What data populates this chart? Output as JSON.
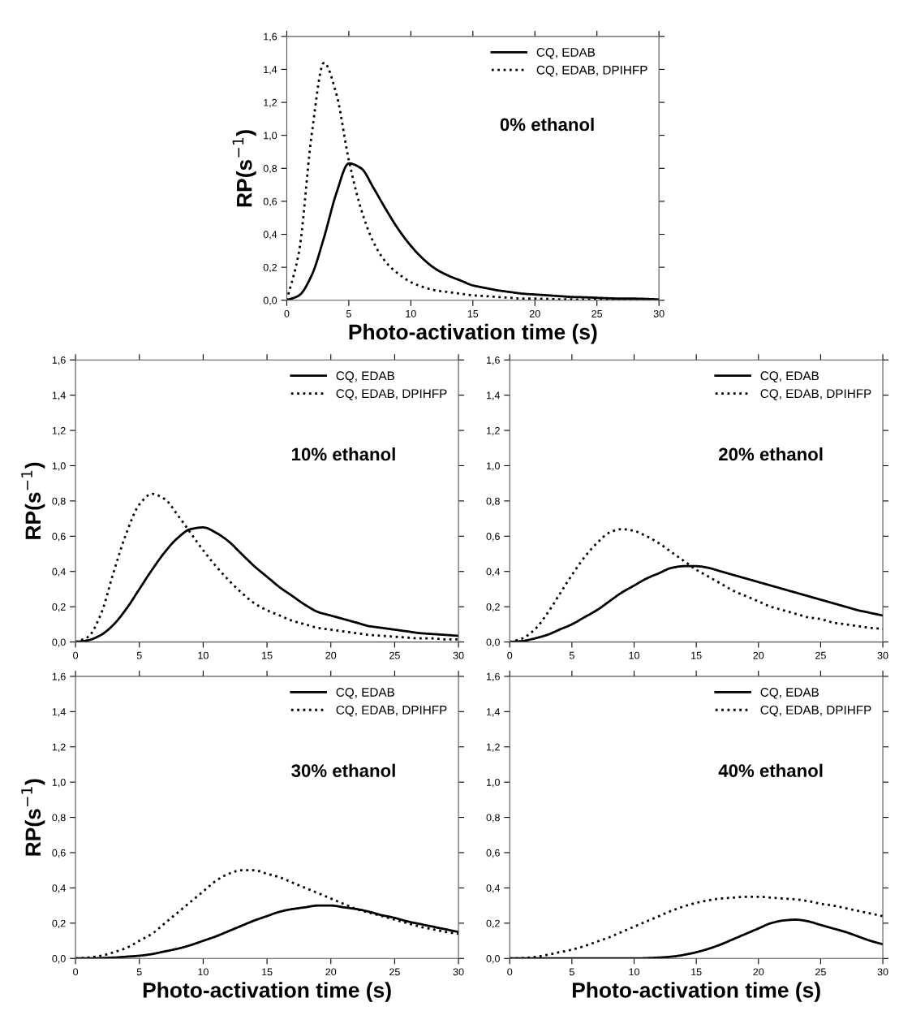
{
  "chart_data": [
    {
      "type": "line",
      "xlabel": "Photo-activation time (s)",
      "ylabel": "RP(s$^{−1}$)",
      "annotations": [
        "0% ethanol"
      ],
      "legend": "top right",
      "x": [
        0,
        1,
        2,
        3,
        4,
        5,
        6,
        7,
        8,
        9,
        10,
        11,
        12,
        13,
        14,
        15,
        16,
        17,
        18,
        19,
        20,
        21,
        22,
        23,
        24,
        25,
        26,
        27,
        28,
        29,
        30
      ],
      "xlim": [
        0,
        30
      ],
      "xticks": [
        0,
        5,
        10,
        15,
        20,
        25,
        30
      ],
      "ylim": [
        0,
        1.6
      ],
      "yticks": [
        {
          "value": 0,
          "label": "0,0"
        },
        {
          "value": 0.2,
          "label": "0,2"
        },
        {
          "value": 0.4,
          "label": "0,4"
        },
        {
          "value": 0.6,
          "label": "0,6"
        },
        {
          "value": 0.8,
          "label": "0,8"
        },
        {
          "value": 1.0,
          "label": "1,0"
        },
        {
          "value": 1.2,
          "label": "1,2"
        },
        {
          "value": 1.4,
          "label": "1,4"
        },
        {
          "value": 1.6,
          "label": "1,6"
        }
      ],
      "series": [
        {
          "name": "CQ, EDAB",
          "color": "#000000",
          "line_style": "solid",
          "values": [
            0,
            0.03,
            0.15,
            0.38,
            0.65,
            0.83,
            0.8,
            0.68,
            0.55,
            0.43,
            0.33,
            0.25,
            0.19,
            0.15,
            0.12,
            0.09,
            0.075,
            0.06,
            0.05,
            0.04,
            0.035,
            0.03,
            0.025,
            0.02,
            0.018,
            0.015,
            0.012,
            0.01,
            0.01,
            0.008,
            0.005
          ]
        },
        {
          "name": "CQ, EDAB, DPIHFP",
          "color": "#000000",
          "line_style": "dotted",
          "values": [
            0,
            0.3,
            1.0,
            1.44,
            1.25,
            0.85,
            0.55,
            0.35,
            0.23,
            0.16,
            0.11,
            0.08,
            0.06,
            0.05,
            0.04,
            0.03,
            0.025,
            0.02,
            0.015,
            0.01,
            0.01,
            0.008,
            0.006,
            0.005,
            0.004,
            0.003,
            0.002,
            0.002,
            0.001,
            0.001,
            0
          ]
        }
      ]
    },
    {
      "type": "line",
      "ylabel": "RP(s$^{−1}$)",
      "annotations": [
        "10% ethanol"
      ],
      "legend": "top right",
      "x": [
        0,
        1,
        2,
        3,
        4,
        5,
        6,
        7,
        8,
        9,
        10,
        11,
        12,
        13,
        14,
        15,
        16,
        17,
        18,
        19,
        20,
        21,
        22,
        23,
        24,
        25,
        26,
        27,
        28,
        29,
        30
      ],
      "xlim": [
        0,
        30
      ],
      "xticks": [
        0,
        5,
        10,
        15,
        20,
        25,
        30
      ],
      "ylim": [
        0,
        1.6
      ],
      "yticks": [
        {
          "value": 0,
          "label": "0,0"
        },
        {
          "value": 0.2,
          "label": "0,2"
        },
        {
          "value": 0.4,
          "label": "0,4"
        },
        {
          "value": 0.6,
          "label": "0,6"
        },
        {
          "value": 0.8,
          "label": "0,8"
        },
        {
          "value": 1.0,
          "label": "1,0"
        },
        {
          "value": 1.2,
          "label": "1,2"
        },
        {
          "value": 1.4,
          "label": "1,4"
        },
        {
          "value": 1.6,
          "label": "1,6"
        }
      ],
      "series": [
        {
          "name": "CQ, EDAB",
          "color": "#000000",
          "line_style": "solid",
          "values": [
            0,
            0.01,
            0.04,
            0.1,
            0.19,
            0.3,
            0.41,
            0.51,
            0.59,
            0.64,
            0.65,
            0.62,
            0.57,
            0.5,
            0.43,
            0.37,
            0.31,
            0.26,
            0.21,
            0.17,
            0.15,
            0.13,
            0.11,
            0.09,
            0.08,
            0.07,
            0.06,
            0.05,
            0.045,
            0.04,
            0.035
          ]
        },
        {
          "name": "CQ, EDAB, DPIHFP",
          "color": "#000000",
          "line_style": "dotted",
          "values": [
            0,
            0.03,
            0.16,
            0.4,
            0.62,
            0.78,
            0.84,
            0.81,
            0.72,
            0.62,
            0.52,
            0.43,
            0.35,
            0.28,
            0.22,
            0.18,
            0.15,
            0.12,
            0.1,
            0.08,
            0.07,
            0.06,
            0.05,
            0.04,
            0.035,
            0.03,
            0.025,
            0.02,
            0.02,
            0.015,
            0.015
          ]
        }
      ]
    },
    {
      "type": "line",
      "annotations": [
        "20% ethanol"
      ],
      "legend": "top right",
      "x": [
        0,
        1,
        2,
        3,
        4,
        5,
        6,
        7,
        8,
        9,
        10,
        11,
        12,
        13,
        14,
        15,
        16,
        17,
        18,
        19,
        20,
        21,
        22,
        23,
        24,
        25,
        26,
        27,
        28,
        29,
        30
      ],
      "xlim": [
        0,
        30
      ],
      "xticks": [
        0,
        5,
        10,
        15,
        20,
        25,
        30
      ],
      "ylim": [
        0,
        1.6
      ],
      "yticks": [
        {
          "value": 0,
          "label": "0,0"
        },
        {
          "value": 0.2,
          "label": "0,2"
        },
        {
          "value": 0.4,
          "label": "0,4"
        },
        {
          "value": 0.6,
          "label": "0,6"
        },
        {
          "value": 0.8,
          "label": "0,8"
        },
        {
          "value": 1.0,
          "label": "1,0"
        },
        {
          "value": 1.2,
          "label": "1,2"
        },
        {
          "value": 1.4,
          "label": "1,4"
        },
        {
          "value": 1.6,
          "label": "1,6"
        }
      ],
      "series": [
        {
          "name": "CQ, EDAB",
          "color": "#000000",
          "line_style": "solid",
          "values": [
            0,
            0.005,
            0.02,
            0.04,
            0.07,
            0.1,
            0.14,
            0.18,
            0.23,
            0.28,
            0.32,
            0.36,
            0.39,
            0.42,
            0.43,
            0.43,
            0.42,
            0.4,
            0.38,
            0.36,
            0.34,
            0.32,
            0.3,
            0.28,
            0.26,
            0.24,
            0.22,
            0.2,
            0.18,
            0.165,
            0.15
          ]
        },
        {
          "name": "CQ, EDAB, DPIHFP",
          "color": "#000000",
          "line_style": "dotted",
          "values": [
            0,
            0.02,
            0.07,
            0.16,
            0.27,
            0.38,
            0.48,
            0.56,
            0.62,
            0.64,
            0.63,
            0.6,
            0.56,
            0.51,
            0.46,
            0.41,
            0.37,
            0.33,
            0.29,
            0.26,
            0.23,
            0.2,
            0.18,
            0.16,
            0.14,
            0.13,
            0.11,
            0.1,
            0.09,
            0.08,
            0.075
          ]
        }
      ]
    },
    {
      "type": "line",
      "xlabel": "Photo-activation time (s)",
      "ylabel": "RP(s$^{−1}$)",
      "annotations": [
        "30% ethanol"
      ],
      "legend": "top right",
      "x": [
        0,
        1,
        2,
        3,
        4,
        5,
        6,
        7,
        8,
        9,
        10,
        11,
        12,
        13,
        14,
        15,
        16,
        17,
        18,
        19,
        20,
        21,
        22,
        23,
        24,
        25,
        26,
        27,
        28,
        29,
        30
      ],
      "xlim": [
        0,
        30
      ],
      "xticks": [
        0,
        5,
        10,
        15,
        20,
        25,
        30
      ],
      "ylim": [
        0,
        1.6
      ],
      "yticks": [
        {
          "value": 0,
          "label": "0,0"
        },
        {
          "value": 0.2,
          "label": "0,2"
        },
        {
          "value": 0.4,
          "label": "0,4"
        },
        {
          "value": 0.6,
          "label": "0,6"
        },
        {
          "value": 0.8,
          "label": "0,8"
        },
        {
          "value": 1.0,
          "label": "1,0"
        },
        {
          "value": 1.2,
          "label": "1,2"
        },
        {
          "value": 1.4,
          "label": "1,4"
        },
        {
          "value": 1.6,
          "label": "1,6"
        }
      ],
      "series": [
        {
          "name": "CQ, EDAB",
          "color": "#000000",
          "line_style": "solid",
          "values": [
            0,
            0,
            0.002,
            0.005,
            0.01,
            0.015,
            0.025,
            0.04,
            0.055,
            0.075,
            0.1,
            0.125,
            0.155,
            0.185,
            0.215,
            0.24,
            0.265,
            0.28,
            0.29,
            0.3,
            0.3,
            0.29,
            0.28,
            0.265,
            0.245,
            0.23,
            0.21,
            0.195,
            0.18,
            0.165,
            0.15
          ]
        },
        {
          "name": "CQ, EDAB, DPIHFP",
          "color": "#000000",
          "line_style": "dotted",
          "values": [
            0,
            0.005,
            0.015,
            0.035,
            0.06,
            0.1,
            0.14,
            0.2,
            0.26,
            0.32,
            0.38,
            0.44,
            0.48,
            0.5,
            0.5,
            0.48,
            0.46,
            0.43,
            0.4,
            0.37,
            0.34,
            0.31,
            0.28,
            0.26,
            0.24,
            0.22,
            0.2,
            0.18,
            0.165,
            0.15,
            0.14
          ]
        }
      ]
    },
    {
      "type": "line",
      "xlabel": "Photo-activation time (s)",
      "annotations": [
        "40% ethanol"
      ],
      "legend": "top right",
      "x": [
        0,
        1,
        2,
        3,
        4,
        5,
        6,
        7,
        8,
        9,
        10,
        11,
        12,
        13,
        14,
        15,
        16,
        17,
        18,
        19,
        20,
        21,
        22,
        23,
        24,
        25,
        26,
        27,
        28,
        29,
        30
      ],
      "xlim": [
        0,
        30
      ],
      "xticks": [
        0,
        5,
        10,
        15,
        20,
        25,
        30
      ],
      "ylim": [
        0,
        1.6
      ],
      "yticks": [
        {
          "value": 0,
          "label": "0,0"
        },
        {
          "value": 0.2,
          "label": "0,2"
        },
        {
          "value": 0.4,
          "label": "0,4"
        },
        {
          "value": 0.6,
          "label": "0,6"
        },
        {
          "value": 0.8,
          "label": "0,8"
        },
        {
          "value": 1.0,
          "label": "1,0"
        },
        {
          "value": 1.2,
          "label": "1,2"
        },
        {
          "value": 1.4,
          "label": "1,4"
        },
        {
          "value": 1.6,
          "label": "1,6"
        }
      ],
      "series": [
        {
          "name": "CQ, EDAB",
          "color": "#000000",
          "line_style": "solid",
          "values": [
            0,
            0,
            0,
            0,
            0,
            0,
            0,
            0,
            0,
            0,
            0,
            0.002,
            0.005,
            0.01,
            0.02,
            0.035,
            0.055,
            0.08,
            0.11,
            0.14,
            0.17,
            0.2,
            0.215,
            0.22,
            0.21,
            0.19,
            0.17,
            0.15,
            0.125,
            0.1,
            0.08
          ]
        },
        {
          "name": "CQ, EDAB, DPIHFP",
          "color": "#000000",
          "line_style": "dotted",
          "values": [
            0,
            0.002,
            0.008,
            0.02,
            0.035,
            0.05,
            0.07,
            0.095,
            0.12,
            0.15,
            0.18,
            0.21,
            0.24,
            0.27,
            0.295,
            0.315,
            0.33,
            0.34,
            0.345,
            0.35,
            0.35,
            0.345,
            0.34,
            0.335,
            0.325,
            0.31,
            0.3,
            0.285,
            0.27,
            0.255,
            0.24
          ]
        }
      ]
    }
  ]
}
